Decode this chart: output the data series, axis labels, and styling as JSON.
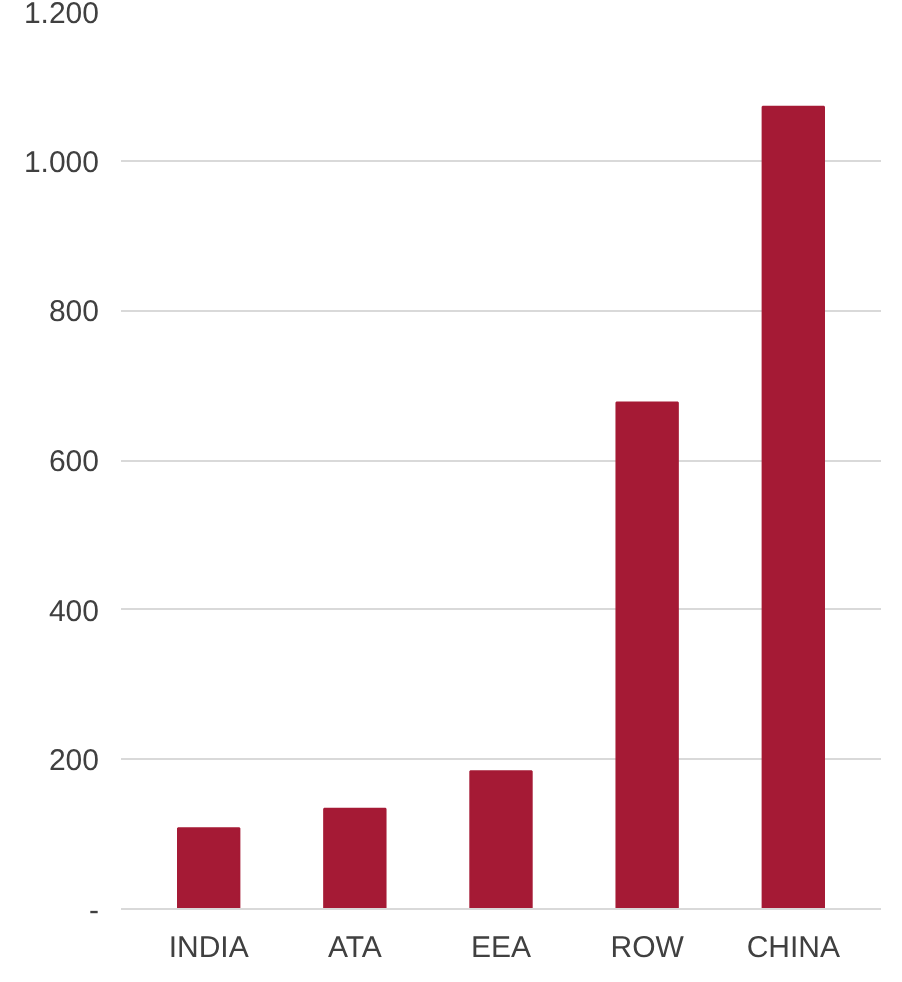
{
  "chart_data": {
    "type": "bar",
    "categories": [
      "INDIA",
      "ATA",
      "EEA",
      "ROW",
      "CHINA"
    ],
    "values": [
      108,
      134,
      184,
      677,
      1072
    ],
    "color": "#a51a35",
    "ylim": [
      0,
      1200
    ],
    "yticks": [
      {
        "value": 0,
        "label": "-"
      },
      200,
      400,
      600,
      800,
      {
        "value": 1000,
        "label": "1.000"
      },
      {
        "value": 1200,
        "label": "1.200"
      }
    ],
    "grid": "y"
  }
}
